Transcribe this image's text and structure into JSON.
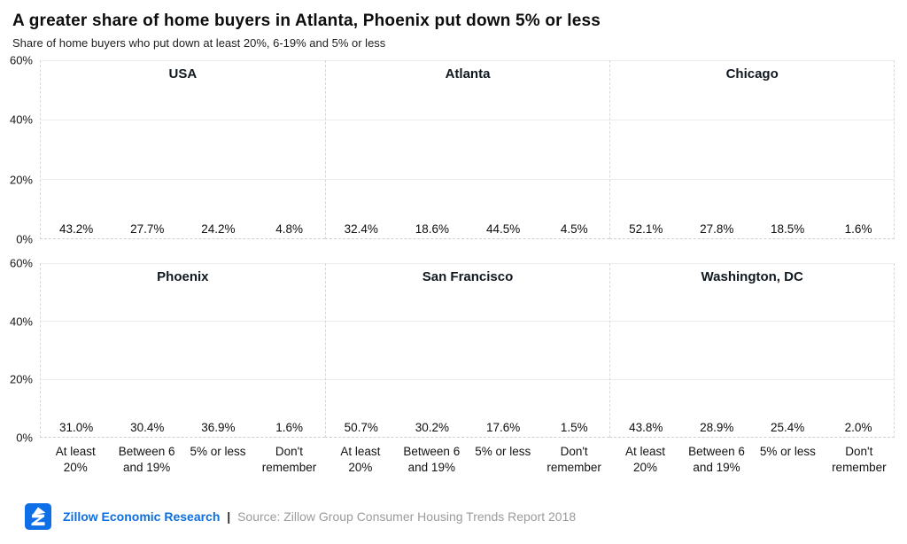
{
  "header": {
    "title": "A greater share of home buyers in Atlanta, Phoenix put down 5% or less",
    "subtitle": "Share of home buyers who put down at least 20%, 6-19% and 5% or less"
  },
  "chart_data": {
    "type": "bar",
    "layout": "small-multiples 2x3",
    "categories": [
      "At least 20%",
      "Between 6 and 19%",
      "5% or less",
      "Don't remember"
    ],
    "category_lines": [
      [
        "At least",
        "20%"
      ],
      [
        "Between 6",
        "and 19%"
      ],
      [
        "5% or less"
      ],
      [
        "Don't",
        "remember"
      ]
    ],
    "bar_colors": [
      "#17B34E",
      "#1D3A5E",
      "#147FE6",
      "#A95FD7"
    ],
    "ylim": [
      0,
      60
    ],
    "yticks_top_to_bottom": [
      "60%",
      "40%",
      "20%",
      "0%"
    ],
    "gridlines_at": [
      60,
      40,
      20
    ],
    "value_suffix": "%",
    "panels": [
      {
        "title": "USA",
        "values": [
          43.2,
          27.7,
          24.2,
          4.8
        ]
      },
      {
        "title": "Atlanta",
        "values": [
          32.4,
          18.6,
          44.5,
          4.5
        ]
      },
      {
        "title": "Chicago",
        "values": [
          52.1,
          27.8,
          18.5,
          1.6
        ]
      },
      {
        "title": "Phoenix",
        "values": [
          31.0,
          30.4,
          36.9,
          1.6
        ]
      },
      {
        "title": "San Francisco",
        "values": [
          50.7,
          30.2,
          17.6,
          1.5
        ]
      },
      {
        "title": "Washington, DC",
        "values": [
          43.8,
          28.9,
          25.4,
          2.0
        ]
      }
    ]
  },
  "footer": {
    "brand": "Zillow Economic Research",
    "separator": "|",
    "source": "Source: Zillow Group Consumer Housing Trends Report 2018",
    "brand_color": "#0D6FE0",
    "logo_color": "#0E6FE6",
    "logo_name": "zillow-logo"
  }
}
